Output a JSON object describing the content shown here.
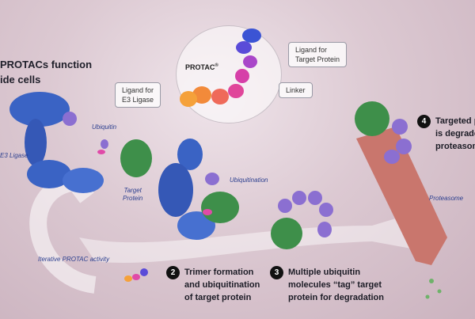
{
  "intro": {
    "line1": "PROTACs function",
    "line2": "ide cells"
  },
  "protac_label": "PROTAC",
  "protac_mark": "®",
  "callouts": {
    "ligand_target": "Ligand for\nTarget Protein",
    "ligand_e3": "Ligand for\nE3 Ligase",
    "linker": "Linker"
  },
  "labels": {
    "e3": "E3 Ligase",
    "ubiquitin": "Ubiquitin",
    "target_protein": "Target\nProtein",
    "ubiquitination": "Ubiquitination",
    "proteasome": "Proteasome",
    "iterative": "Iterative PROTAC activity"
  },
  "steps": [
    {
      "num": "2",
      "text": "Trimer formation\nand ubiquitination\nof target protein"
    },
    {
      "num": "3",
      "text": "Multiple ubiquitin\nmolecules “tag” target\nprotein for degradation"
    },
    {
      "num": "4",
      "text": "Targeted p\nis degrade\nproteasom"
    }
  ],
  "colors": {
    "e3": "#3a63c4",
    "target": "#3e8f4a",
    "ubiquitin": "#8b6fd1",
    "proteasome": "#c9766d",
    "linker": "#e04aa8"
  }
}
